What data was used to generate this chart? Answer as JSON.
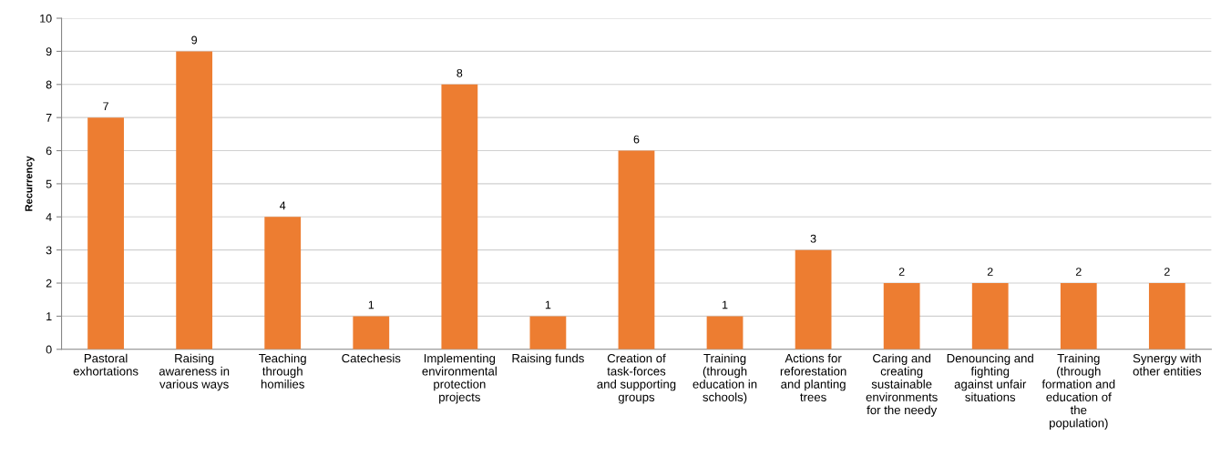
{
  "chart_data": {
    "type": "bar",
    "ylabel": "Recurrency",
    "categories": [
      "Pastoral exhortations",
      "Raising awareness in various ways",
      "Teaching through homilies",
      "Catechesis",
      "Implementing environmental protection projects",
      "Raising funds",
      "Creation of task-forces and supporting groups",
      "Training (through education in schools)",
      "Actions for reforestation and planting trees",
      "Caring and creating sustainable environments for the needy",
      "Denouncing and fighting against unfair situations",
      "Training (through formation and education of the population)",
      "Synergy with other entities"
    ],
    "values": [
      7,
      9,
      4,
      1,
      8,
      1,
      6,
      1,
      3,
      2,
      2,
      2,
      2
    ],
    "color": "#ed7d31",
    "ylim": [
      0,
      10
    ],
    "yticks": [
      0,
      1,
      2,
      3,
      4,
      5,
      6,
      7,
      8,
      9,
      10
    ],
    "grid": "y",
    "data_labels": true
  }
}
